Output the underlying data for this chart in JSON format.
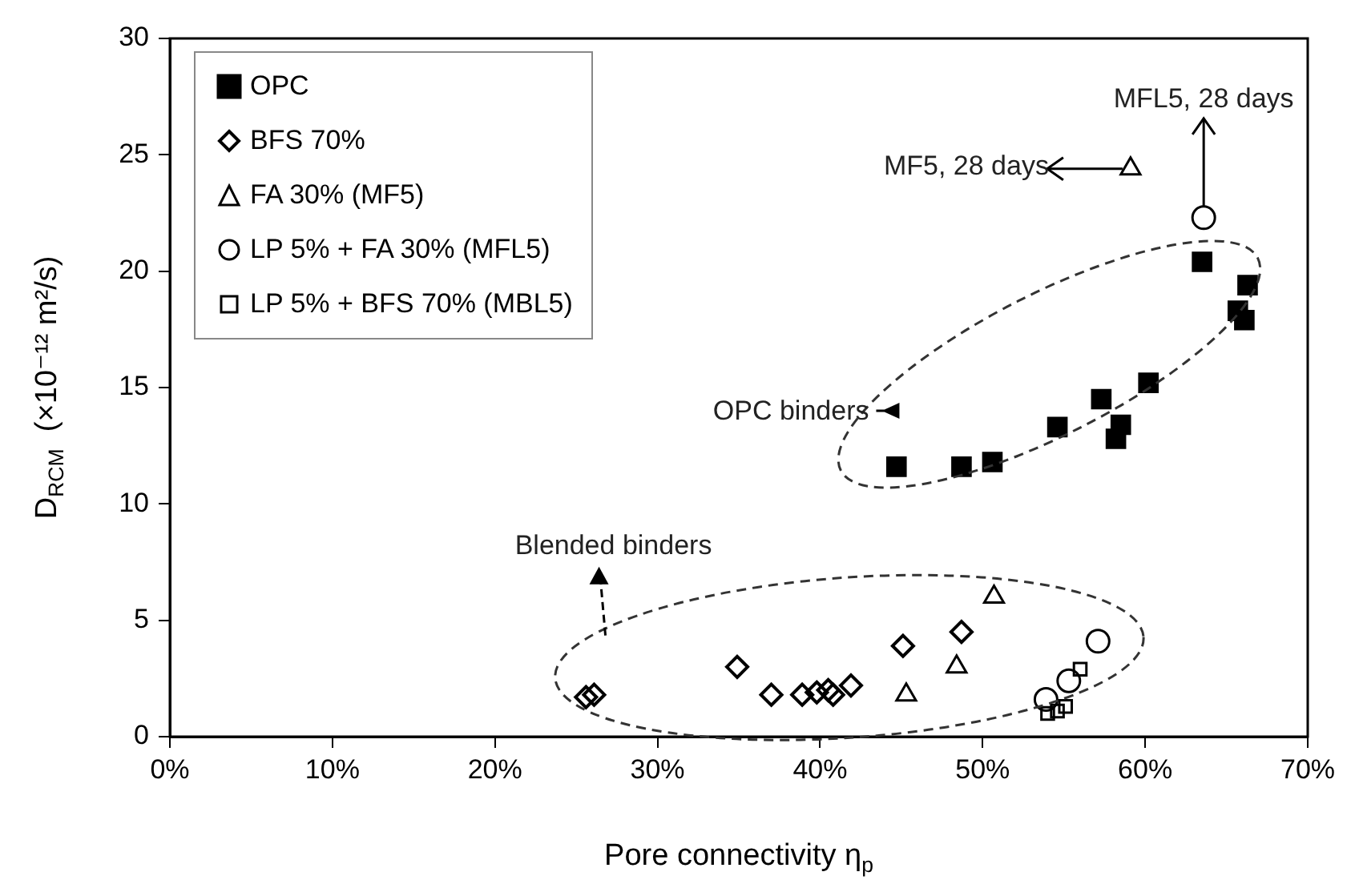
{
  "chart_data": {
    "type": "scatter",
    "xlabel": "Pore connectivity η$_{p}$",
    "ylabel": "D$_{RCM}$  (×10⁻¹² m²/s)",
    "xlim": [
      0,
      70
    ],
    "xticks": [
      {
        "value": 0,
        "label": "0%"
      },
      {
        "value": 10,
        "label": "10%"
      },
      {
        "value": 20,
        "label": "20%"
      },
      {
        "value": 30,
        "label": "30%"
      },
      {
        "value": 40,
        "label": "40%"
      },
      {
        "value": 50,
        "label": "50%"
      },
      {
        "value": 60,
        "label": "60%"
      },
      {
        "value": 70,
        "label": "70%"
      }
    ],
    "ylim": [
      0,
      30
    ],
    "yticks": [
      0,
      5,
      10,
      15,
      20,
      25,
      30
    ],
    "grid": false,
    "legend": "top left",
    "series": [
      {
        "name": "OPC",
        "color": "#000000",
        "marker": "square",
        "x": [
          44.7,
          48.7,
          50.6,
          54.6,
          57.3,
          58.5,
          58.2,
          60.2,
          63.5,
          66.3,
          65.7,
          66.1
        ],
        "values": [
          11.6,
          11.6,
          11.8,
          13.3,
          14.5,
          13.4,
          12.8,
          15.2,
          20.4,
          19.4,
          18.3,
          17.9
        ]
      },
      {
        "name": "BFS 70%",
        "color": "#000000",
        "marker": "diamond",
        "x": [
          25.6,
          26.1,
          34.9,
          37.0,
          38.9,
          39.8,
          40.5,
          40.8,
          41.9,
          45.1,
          48.7
        ],
        "values": [
          1.7,
          1.8,
          3.0,
          1.8,
          1.8,
          1.9,
          2.0,
          1.8,
          2.2,
          3.9,
          4.5
        ]
      },
      {
        "name": "FA 30% (MF5)",
        "color": "#000000",
        "marker": "triangle",
        "x": [
          45.3,
          48.4,
          50.7,
          59.1
        ],
        "values": [
          1.8,
          3.0,
          6.0,
          24.4
        ]
      },
      {
        "name": "LP 5% + FA 30% (MFL5)",
        "color": "#000000",
        "marker": "circle",
        "x": [
          53.9,
          55.3,
          57.1,
          63.6
        ],
        "values": [
          1.6,
          2.4,
          4.1,
          22.3
        ]
      },
      {
        "name": "LP 5% + BFS 70% (MBL5)",
        "color": "#000000",
        "marker": "square",
        "x": [
          54.0,
          54.6,
          55.1,
          56.0
        ],
        "values": [
          1.0,
          1.1,
          1.3,
          2.9
        ]
      }
    ],
    "annotations": [
      {
        "text": "MF5, 28 days",
        "x": 59.1,
        "y": 24.4
      },
      {
        "text": "MFL5, 28 days",
        "x": 63.6,
        "y": 22.3
      },
      "OPC binders",
      "Blended binders"
    ]
  }
}
